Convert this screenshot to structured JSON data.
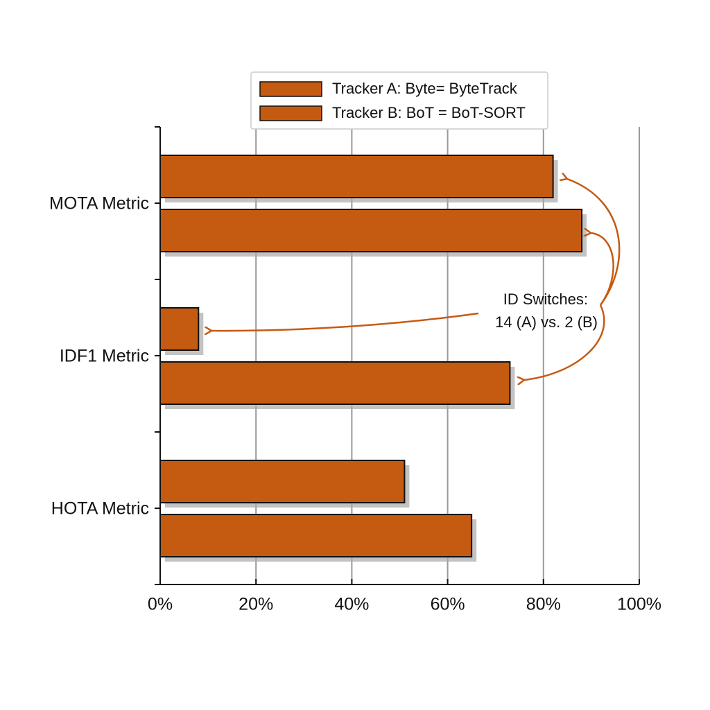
{
  "chart_data": {
    "type": "hbar",
    "categories": [
      "MOTA Metric",
      "IDF1 Metric",
      "HOTA Metric"
    ],
    "series": [
      {
        "name": "Tracker A: Byte= ByteTrack",
        "color": "#c55a11",
        "values": [
          82,
          8,
          51
        ]
      },
      {
        "name": "Tracker B: BoT = BoT-SORT",
        "color": "#c55a11",
        "values": [
          88,
          73,
          65
        ]
      }
    ],
    "xlim": [
      0,
      100
    ],
    "xticks": [
      {
        "value": 0,
        "label": "0%"
      },
      {
        "value": 20,
        "label": "20%"
      },
      {
        "value": 40,
        "label": "40%"
      },
      {
        "value": 60,
        "label": "60%"
      },
      {
        "value": 80,
        "label": "80%"
      },
      {
        "value": 100,
        "label": "100%"
      }
    ],
    "grid": true,
    "legend": "top",
    "annotation": [
      "ID Switches:",
      "14 (A) vs. 2 (B)"
    ]
  }
}
